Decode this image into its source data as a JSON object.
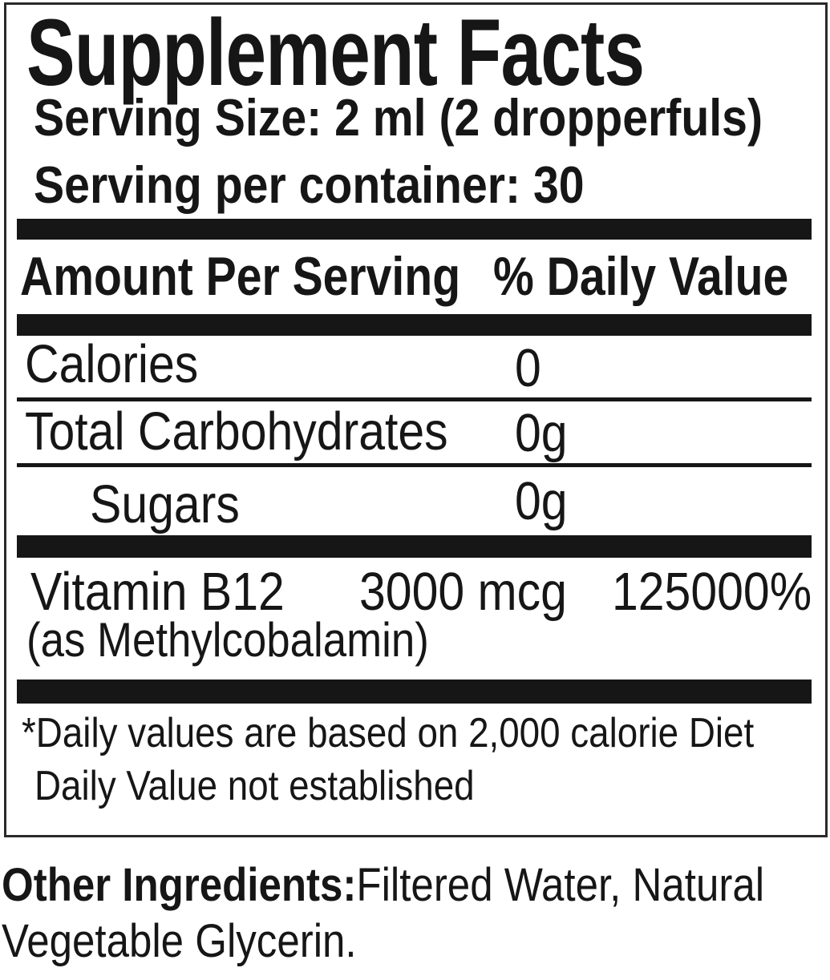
{
  "colors": {
    "ink": "#161616",
    "paper": "#ffffff"
  },
  "supplement_facts": {
    "title": "Supplement Facts",
    "serving_size": "Serving Size: 2 ml (2 dropperfuls)",
    "servings_per_container": "Serving per container: 30",
    "columns": {
      "amount": "Amount Per Serving",
      "daily_value": "% Daily Value"
    },
    "nutrients": [
      {
        "name": "Calories",
        "amount": "0",
        "daily_value": ""
      },
      {
        "name": "Total Carbohydrates",
        "amount": "0g",
        "daily_value": ""
      },
      {
        "name": "Sugars",
        "amount": "0g",
        "daily_value": "",
        "indented": true
      },
      {
        "name": "Vitamin B12",
        "source": "(as Methylcobalamin)",
        "amount": "3000 mcg",
        "daily_value": "125000%"
      }
    ],
    "footnotes": [
      "*Daily values are based on 2,000 calorie Diet",
      "Daily Value not established"
    ]
  },
  "other_ingredients": {
    "label": "Other Ingredients:",
    "text": "Filtered Water, Natural Vegetable Glycerin."
  }
}
